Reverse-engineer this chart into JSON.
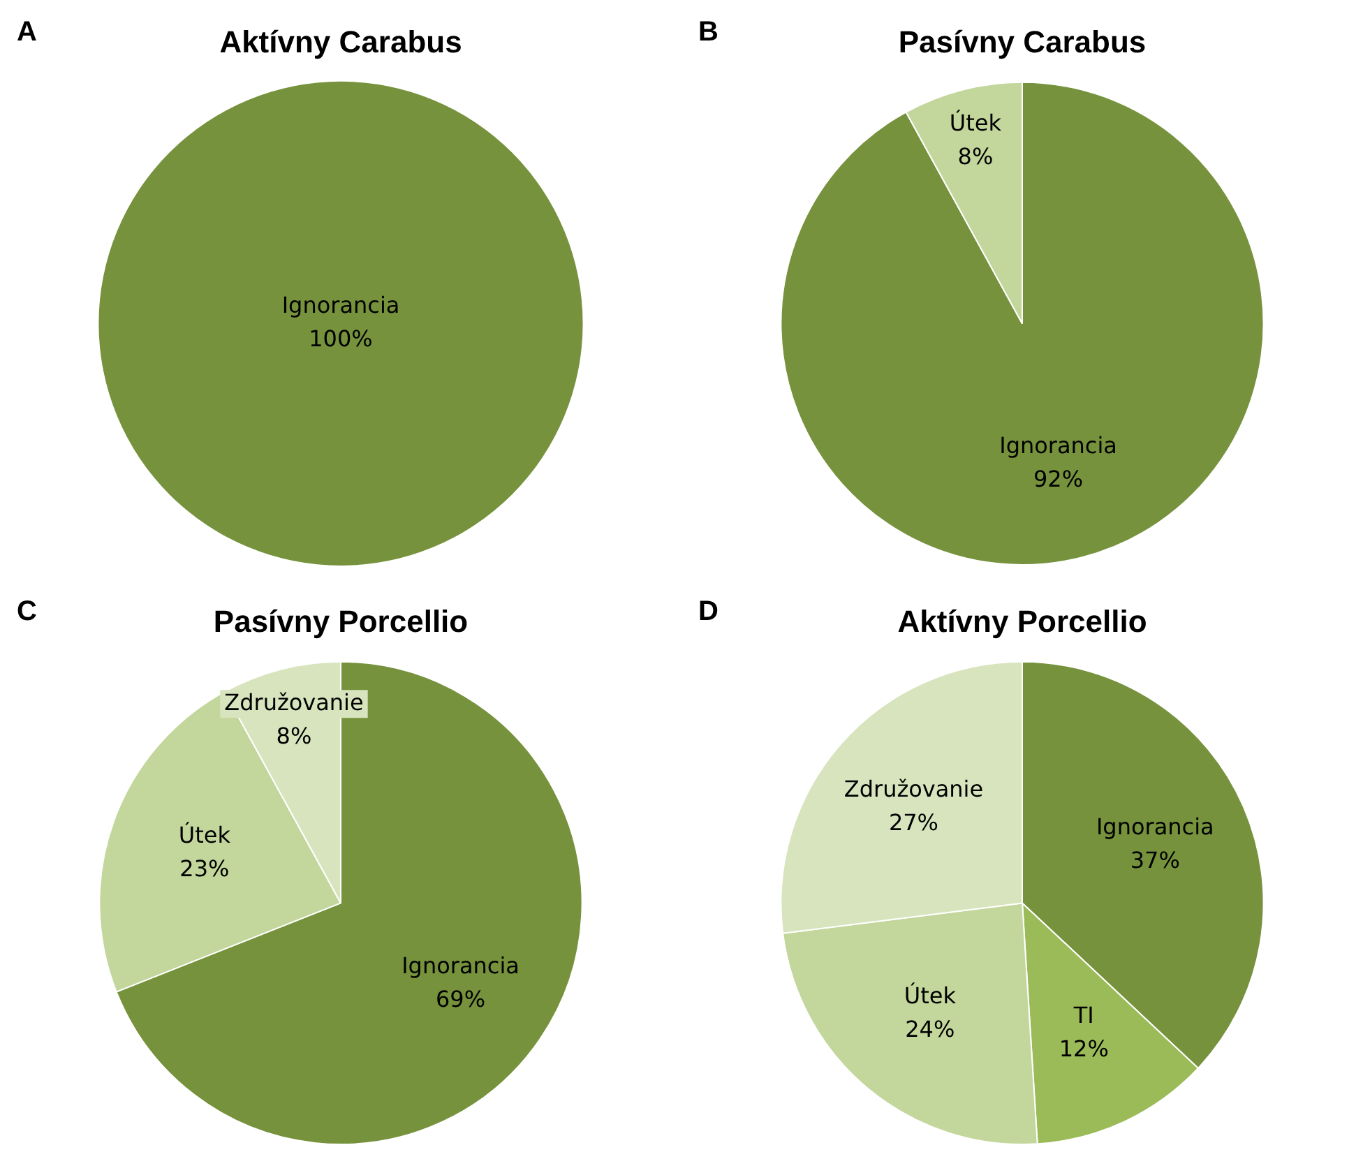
{
  "chart_data": [
    {
      "type": "pie",
      "title": "Aktívny Carabus",
      "annotations": [
        "A"
      ],
      "categories": [
        "Ignorancia"
      ],
      "values": [
        100
      ],
      "value_labels": [
        "100%"
      ],
      "colors": [
        "#76923c"
      ],
      "legend": false
    },
    {
      "type": "pie",
      "title": "Pasívny Carabus",
      "annotations": [
        "B"
      ],
      "categories": [
        "Ignorancia",
        "Útek"
      ],
      "values": [
        92,
        8
      ],
      "value_labels": [
        "92%",
        "8%"
      ],
      "colors": [
        "#76923c",
        "#c3d69b"
      ],
      "legend": false
    },
    {
      "type": "pie",
      "title": "Pasívny Porcellio",
      "annotations": [
        "C"
      ],
      "categories": [
        "Ignorancia",
        "Útek",
        "Združovanie"
      ],
      "values": [
        69,
        23,
        8
      ],
      "value_labels": [
        "69%",
        "23%",
        "8%"
      ],
      "colors": [
        "#76923c",
        "#c3d69b",
        "#d7e4bd"
      ],
      "legend": false
    },
    {
      "type": "pie",
      "title": "Aktívny Porcellio",
      "annotations": [
        "D"
      ],
      "categories": [
        "Ignorancia",
        "TI",
        "Útek",
        "Združovanie"
      ],
      "values": [
        37,
        12,
        24,
        27
      ],
      "value_labels": [
        "37%",
        "12%",
        "24%",
        "27%"
      ],
      "colors": [
        "#76923c",
        "#9bbb59",
        "#c3d69b",
        "#d7e4bd"
      ],
      "legend": false
    }
  ]
}
